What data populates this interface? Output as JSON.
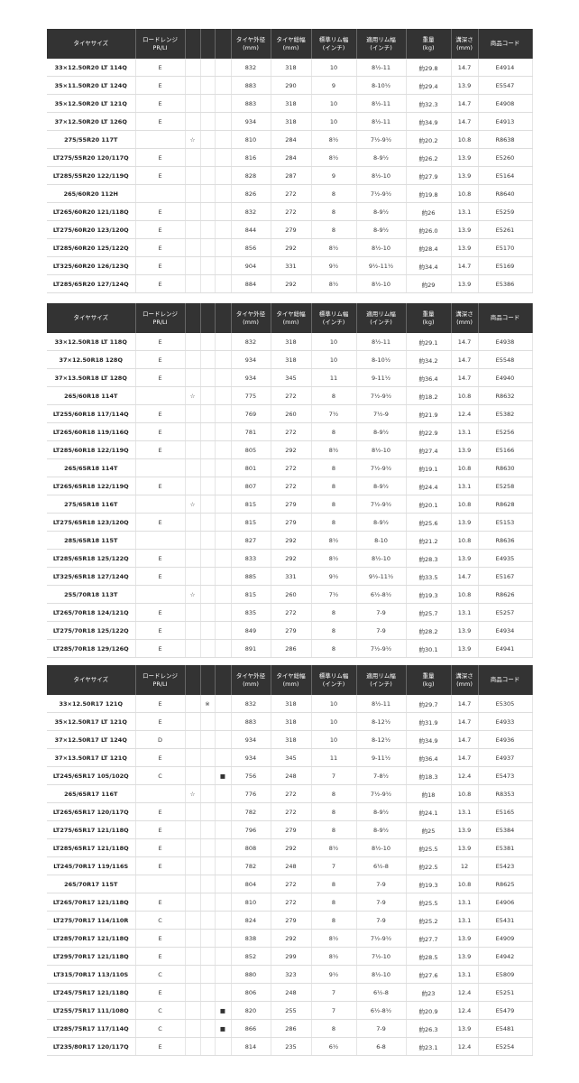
{
  "tables": [
    {
      "header": [
        "タイヤサイズ",
        "ロードレンジ\nPR/LI",
        null,
        null,
        null,
        "タイヤ外径\n(mm)",
        "タイヤ総幅\n(mm)",
        "標準リム幅\n(インチ)",
        "適用リム幅\n(インチ)",
        "重量\n(kg)",
        "溝深さ\n(mm)",
        "商品コード"
      ],
      "rows": [
        [
          "33×12.50R20 LT 114Q",
          "E",
          null,
          null,
          null,
          "832",
          "318",
          "10",
          "8½-11",
          "約29.8",
          "14.7",
          "E4914"
        ],
        [
          "35×11.50R20 LT 124Q",
          "E",
          null,
          null,
          null,
          "883",
          "290",
          "9",
          "8-10½",
          "約29.4",
          "13.9",
          "E5547"
        ],
        [
          "35×12.50R20 LT 121Q",
          "E",
          null,
          null,
          null,
          "883",
          "318",
          "10",
          "8½-11",
          "約32.3",
          "14.7",
          "E4908"
        ],
        [
          "37×12.50R20 LT 126Q",
          "E",
          null,
          null,
          null,
          "934",
          "318",
          "10",
          "8½-11",
          "約34.9",
          "14.7",
          "E4913"
        ],
        [
          "275/55R20 117T",
          null,
          "☆",
          null,
          null,
          "810",
          "284",
          "8½",
          "7½-9½",
          "約20.2",
          "10.8",
          "R8638"
        ],
        [
          "LT275/55R20 120/117Q",
          "E",
          null,
          null,
          null,
          "816",
          "284",
          "8½",
          "8-9½",
          "約26.2",
          "13.9",
          "E5260"
        ],
        [
          "LT285/55R20 122/119Q",
          "E",
          null,
          null,
          null,
          "828",
          "287",
          "9",
          "8½-10",
          "約27.9",
          "13.9",
          "E5164"
        ],
        [
          "265/60R20 112H",
          null,
          null,
          null,
          null,
          "826",
          "272",
          "8",
          "7½-9½",
          "約19.8",
          "10.8",
          "R8640"
        ],
        [
          "LT265/60R20 121/118Q",
          "E",
          null,
          null,
          null,
          "832",
          "272",
          "8",
          "8-9½",
          "約26",
          "13.1",
          "E5259"
        ],
        [
          "LT275/60R20 123/120Q",
          "E",
          null,
          null,
          null,
          "844",
          "279",
          "8",
          "8-9½",
          "約26.0",
          "13.9",
          "E5261"
        ],
        [
          "LT285/60R20 125/122Q",
          "E",
          null,
          null,
          null,
          "856",
          "292",
          "8½",
          "8½-10",
          "約28.4",
          "13.9",
          "E5170"
        ],
        [
          "LT325/60R20 126/123Q",
          "E",
          null,
          null,
          null,
          "904",
          "331",
          "9½",
          "9½-11½",
          "約34.4",
          "14.7",
          "E5169"
        ],
        [
          "LT285/65R20 127/124Q",
          "E",
          null,
          null,
          null,
          "884",
          "292",
          "8½",
          "8½-10",
          "約29",
          "13.9",
          "E5386"
        ]
      ]
    },
    {
      "header": [
        "タイヤサイズ",
        "ロードレンジ\nPR/LI",
        null,
        null,
        null,
        "タイヤ外径\n(mm)",
        "タイヤ総幅\n(mm)",
        "標準リム幅\n(インチ)",
        "適用リム幅\n(インチ)",
        "重量\n(kg)",
        "溝深さ\n(mm)",
        "商品コード"
      ],
      "rows": [
        [
          "33×12.50R18 LT 118Q",
          "E",
          null,
          null,
          null,
          "832",
          "318",
          "10",
          "8½-11",
          "約29.1",
          "14.7",
          "E4938"
        ],
        [
          "37×12.50R18 128Q",
          "E",
          null,
          null,
          null,
          "934",
          "318",
          "10",
          "8-10½",
          "約34.2",
          "14.7",
          "E5548"
        ],
        [
          "37×13.50R18 LT 128Q",
          "E",
          null,
          null,
          null,
          "934",
          "345",
          "11",
          "9-11½",
          "約36.4",
          "14.7",
          "E4940"
        ],
        [
          "265/60R18 114T",
          null,
          "☆",
          null,
          null,
          "775",
          "272",
          "8",
          "7½-9½",
          "約18.2",
          "10.8",
          "R8632"
        ],
        [
          "LT255/60R18 117/114Q",
          "E",
          null,
          null,
          null,
          "769",
          "260",
          "7½",
          "7½-9",
          "約21.9",
          "12.4",
          "E5382"
        ],
        [
          "LT265/60R18 119/116Q",
          "E",
          null,
          null,
          null,
          "781",
          "272",
          "8",
          "8-9½",
          "約22.9",
          "13.1",
          "E5256"
        ],
        [
          "LT285/60R18 122/119Q",
          "E",
          null,
          null,
          null,
          "805",
          "292",
          "8½",
          "8½-10",
          "約27.4",
          "13.9",
          "E5166"
        ],
        [
          "265/65R18 114T",
          null,
          null,
          null,
          null,
          "801",
          "272",
          "8",
          "7½-9½",
          "約19.1",
          "10.8",
          "R8630"
        ],
        [
          "LT265/65R18 122/119Q",
          "E",
          null,
          null,
          null,
          "807",
          "272",
          "8",
          "8-9½",
          "約24.4",
          "13.1",
          "E5258"
        ],
        [
          "275/65R18 116T",
          null,
          "☆",
          null,
          null,
          "815",
          "279",
          "8",
          "7½-9½",
          "約20.1",
          "10.8",
          "R8628"
        ],
        [
          "LT275/65R18 123/120Q",
          "E",
          null,
          null,
          null,
          "815",
          "279",
          "8",
          "8-9½",
          "約25.6",
          "13.9",
          "E5153"
        ],
        [
          "285/65R18 115T",
          null,
          null,
          null,
          null,
          "827",
          "292",
          "8½",
          "8-10",
          "約21.2",
          "10.8",
          "R8636"
        ],
        [
          "LT285/65R18 125/122Q",
          "E",
          null,
          null,
          null,
          "833",
          "292",
          "8½",
          "8½-10",
          "約28.3",
          "13.9",
          "E4935"
        ],
        [
          "LT325/65R18 127/124Q",
          "E",
          null,
          null,
          null,
          "885",
          "331",
          "9½",
          "9½-11½",
          "約33.5",
          "14.7",
          "E5167"
        ],
        [
          "255/70R18 113T",
          null,
          "☆",
          null,
          null,
          "815",
          "260",
          "7½",
          "6½-8½",
          "約19.3",
          "10.8",
          "R8626"
        ],
        [
          "LT265/70R18 124/121Q",
          "E",
          null,
          null,
          null,
          "835",
          "272",
          "8",
          "7-9",
          "約25.7",
          "13.1",
          "E5257"
        ],
        [
          "LT275/70R18 125/122Q",
          "E",
          null,
          null,
          null,
          "849",
          "279",
          "8",
          "7-9",
          "約28.2",
          "13.9",
          "E4934"
        ],
        [
          "LT285/70R18 129/126Q",
          "E",
          null,
          null,
          null,
          "891",
          "286",
          "8",
          "7½-9½",
          "約30.1",
          "13.9",
          "E4941"
        ]
      ]
    },
    {
      "header": [
        "タイヤサイズ",
        "ロードレンジ\nPR/LI",
        null,
        null,
        null,
        "タイヤ外径\n(mm)",
        "タイヤ総幅\n(mm)",
        "標準リム幅\n(インチ)",
        "適用リム幅\n(インチ)",
        "重量\n(kg)",
        "溝深さ\n(mm)",
        "商品コード"
      ],
      "rows": [
        [
          "33×12.50R17 121Q",
          "E",
          null,
          "※",
          null,
          "832",
          "318",
          "10",
          "8½-11",
          "約29.7",
          "14.7",
          "E5305"
        ],
        [
          "35×12.50R17 LT 121Q",
          "E",
          null,
          null,
          null,
          "883",
          "318",
          "10",
          "8-12½",
          "約31.9",
          "14.7",
          "E4933"
        ],
        [
          "37×12.50R17 LT 124Q",
          "D",
          null,
          null,
          null,
          "934",
          "318",
          "10",
          "8-12½",
          "約34.9",
          "14.7",
          "E4936"
        ],
        [
          "37×13.50R17 LT 121Q",
          "E",
          null,
          null,
          null,
          "934",
          "345",
          "11",
          "9-11½",
          "約36.4",
          "14.7",
          "E4937"
        ],
        [
          "LT245/65R17 105/102Q",
          "C",
          null,
          null,
          "■",
          "756",
          "248",
          "7",
          "7-8½",
          "約18.3",
          "12.4",
          "E5473"
        ],
        [
          "265/65R17 116T",
          null,
          "☆",
          null,
          null,
          "776",
          "272",
          "8",
          "7½-9½",
          "約18",
          "10.8",
          "R8353"
        ],
        [
          "LT265/65R17 120/117Q",
          "E",
          null,
          null,
          null,
          "782",
          "272",
          "8",
          "8-9½",
          "約24.1",
          "13.1",
          "E5165"
        ],
        [
          "LT275/65R17 121/118Q",
          "E",
          null,
          null,
          null,
          "796",
          "279",
          "8",
          "8-9½",
          "約25",
          "13.9",
          "E5384"
        ],
        [
          "LT285/65R17 121/118Q",
          "E",
          null,
          null,
          null,
          "808",
          "292",
          "8½",
          "8½-10",
          "約25.5",
          "13.9",
          "E5381"
        ],
        [
          "LT245/70R17 119/116S",
          "E",
          null,
          null,
          null,
          "782",
          "248",
          "7",
          "6½-8",
          "約22.5",
          "12",
          "E5423"
        ],
        [
          "265/70R17 115T",
          null,
          null,
          null,
          null,
          "804",
          "272",
          "8",
          "7-9",
          "約19.3",
          "10.8",
          "R8625"
        ],
        [
          "LT265/70R17 121/118Q",
          "E",
          null,
          null,
          null,
          "810",
          "272",
          "8",
          "7-9",
          "約25.5",
          "13.1",
          "E4906"
        ],
        [
          "LT275/70R17 114/110R",
          "C",
          null,
          null,
          null,
          "824",
          "279",
          "8",
          "7-9",
          "約25.2",
          "13.1",
          "E5431"
        ],
        [
          "LT285/70R17 121/118Q",
          "E",
          null,
          null,
          null,
          "838",
          "292",
          "8½",
          "7½-9½",
          "約27.7",
          "13.9",
          "E4909"
        ],
        [
          "LT295/70R17 121/118Q",
          "E",
          null,
          null,
          null,
          "852",
          "299",
          "8½",
          "7½-10",
          "約28.5",
          "13.9",
          "E4942"
        ],
        [
          "LT315/70R17 113/110S",
          "C",
          null,
          null,
          null,
          "880",
          "323",
          "9½",
          "8½-10",
          "約27.6",
          "13.1",
          "E5809"
        ],
        [
          "LT245/75R17 121/118Q",
          "E",
          null,
          null,
          null,
          "806",
          "248",
          "7",
          "6½-8",
          "約23",
          "12.4",
          "E5251"
        ],
        [
          "LT255/75R17 111/108Q",
          "C",
          null,
          null,
          "■",
          "820",
          "255",
          "7",
          "6½-8½",
          "約20.9",
          "12.4",
          "E5479"
        ],
        [
          "LT285/75R17 117/114Q",
          "C",
          null,
          null,
          "■",
          "866",
          "286",
          "8",
          "7-9",
          "約26.3",
          "13.9",
          "E5481"
        ],
        [
          "LT235/80R17 120/117Q",
          "E",
          null,
          null,
          null,
          "814",
          "235",
          "6½",
          "6-8",
          "約23.1",
          "12.4",
          "E5254"
        ]
      ]
    }
  ]
}
